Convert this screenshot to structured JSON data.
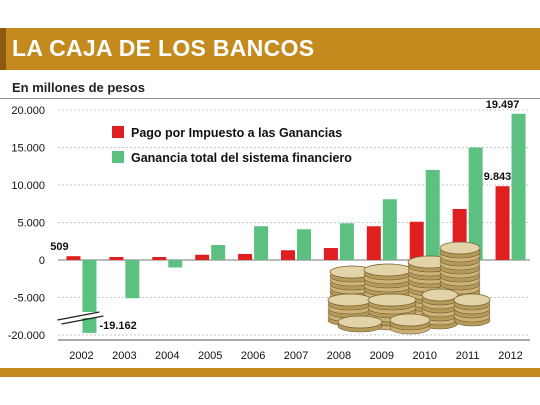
{
  "header": {
    "title": "LA CAJA DE LOS BANCOS"
  },
  "chart_data": {
    "type": "bar",
    "subtitle": "En millones de pesos",
    "categories": [
      "2002",
      "2003",
      "2004",
      "2005",
      "2006",
      "2007",
      "2008",
      "2009",
      "2010",
      "2011",
      "2012"
    ],
    "series": [
      {
        "name": "Pago por Impuesto a las Ganancias",
        "color": "#e02020",
        "values": [
          509,
          400,
          400,
          700,
          800,
          1300,
          1600,
          4500,
          5100,
          6800,
          9843
        ]
      },
      {
        "name": "Ganancia total del sistema financiero",
        "color": "#5cc080",
        "values": [
          -19162,
          -5300,
          -1000,
          2000,
          4500,
          4100,
          4900,
          8100,
          12000,
          15000,
          19497
        ]
      }
    ],
    "y_ticks": [
      "20.000",
      "15.000",
      "10.000",
      "5.000",
      "0",
      "-5.000",
      "-20.000"
    ],
    "ylim": [
      -20000,
      20000
    ],
    "axis_break": true,
    "grid": true,
    "legend_position": "top-left",
    "data_labels": [
      {
        "series": 0,
        "index": 0,
        "text": "509"
      },
      {
        "series": 1,
        "index": 0,
        "text": "-19.162"
      },
      {
        "series": 0,
        "index": 10,
        "text": "9.843"
      },
      {
        "series": 1,
        "index": 10,
        "text": "19.497"
      }
    ],
    "image": "coins-icon"
  }
}
